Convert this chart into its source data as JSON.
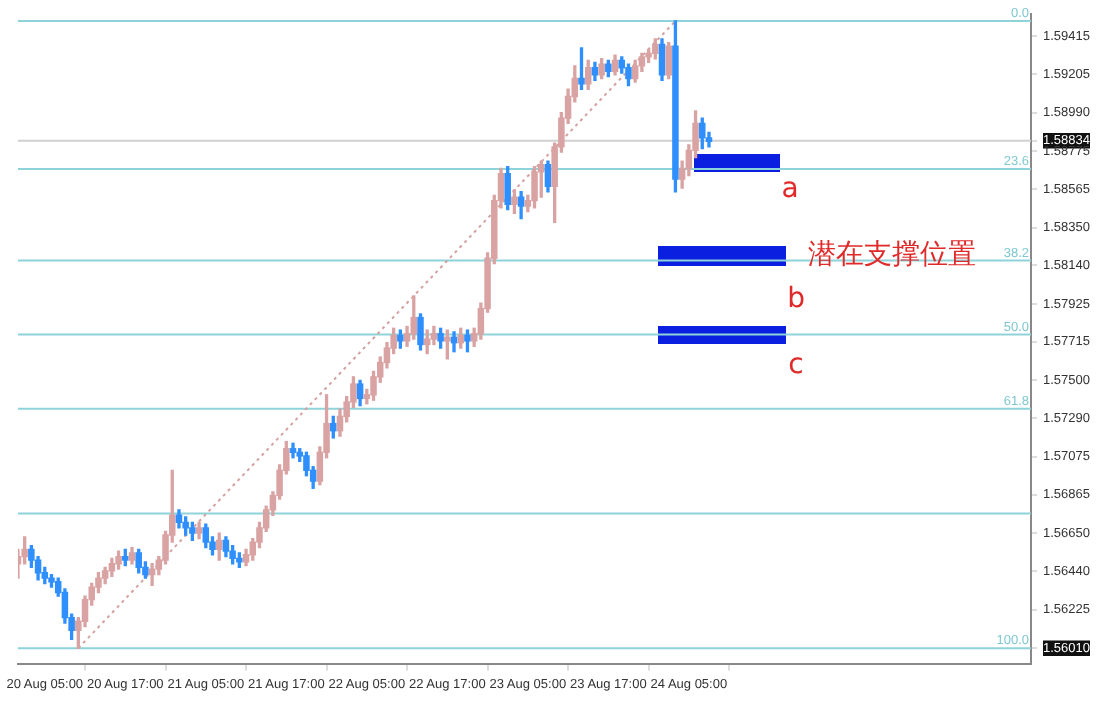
{
  "chart_data": {
    "type": "candlestick",
    "categories": [
      null,
      null,
      null,
      null,
      "20 Aug 05:00",
      null,
      null,
      null,
      null,
      null,
      null,
      null,
      null,
      null,
      null,
      null,
      "20 Aug 17:00",
      null,
      null,
      null,
      null,
      null,
      null,
      null,
      null,
      null,
      null,
      null,
      "21 Aug 05:00",
      null,
      null,
      null,
      null,
      null,
      null,
      null,
      null,
      null,
      null,
      null,
      "21 Aug 17:00",
      null,
      null,
      null,
      null,
      null,
      null,
      null,
      null,
      null,
      null,
      null,
      "22 Aug 05:00",
      null,
      null,
      null,
      null,
      null,
      null,
      null,
      null,
      null,
      null,
      null,
      "22 Aug 17:00",
      null,
      null,
      null,
      null,
      null,
      null,
      null,
      null,
      null,
      null,
      null,
      "23 Aug 05:00",
      null,
      null,
      null,
      null,
      null,
      null,
      null,
      null,
      null,
      null,
      null,
      "23 Aug 17:00",
      null,
      null,
      null,
      null,
      null,
      null,
      null,
      null,
      null,
      null,
      null,
      "24 Aug 05:00",
      null,
      null,
      null,
      null,
      null,
      null,
      null,
      null,
      null,
      null,
      null,
      null,
      null,
      null,
      null,
      null,
      null,
      null,
      null,
      null,
      null,
      null,
      null,
      null,
      null,
      null,
      null,
      null,
      null,
      null,
      null,
      null,
      null,
      null,
      null,
      null,
      null,
      null,
      null,
      null,
      null,
      null,
      null,
      null,
      null,
      null,
      null,
      null,
      null,
      null,
      null
    ],
    "ohlc": [
      [
        1.5648,
        1.5656,
        1.564,
        1.5652
      ],
      [
        1.5652,
        1.5663,
        1.5648,
        1.5656
      ],
      [
        1.5656,
        1.5658,
        1.5646,
        1.565
      ],
      [
        1.565,
        1.5652,
        1.5639,
        1.5643
      ],
      [
        1.5643,
        1.5646,
        1.5637,
        1.564
      ],
      [
        1.564,
        1.5642,
        1.5635,
        1.5638
      ],
      [
        1.5638,
        1.564,
        1.563,
        1.5632
      ],
      [
        1.5632,
        1.5634,
        1.5615,
        1.5618
      ],
      [
        1.5618,
        1.562,
        1.5606,
        1.5611
      ],
      [
        1.5611,
        1.5618,
        1.5601,
        1.5616
      ],
      [
        1.5616,
        1.563,
        1.5613,
        1.5628
      ],
      [
        1.5628,
        1.5637,
        1.5625,
        1.5635
      ],
      [
        1.5635,
        1.5643,
        1.5632,
        1.564
      ],
      [
        1.564,
        1.5646,
        1.5637,
        1.5644
      ],
      [
        1.5644,
        1.5651,
        1.5641,
        1.5648
      ],
      [
        1.5648,
        1.5655,
        1.5645,
        1.5652
      ],
      [
        1.5652,
        1.5656,
        1.5647,
        1.565
      ],
      [
        1.565,
        1.5657,
        1.5648,
        1.5654
      ],
      [
        1.5654,
        1.5656,
        1.5643,
        1.5646
      ],
      [
        1.5646,
        1.5649,
        1.564,
        1.5642
      ],
      [
        1.5642,
        1.5648,
        1.5636,
        1.5645
      ],
      [
        1.5645,
        1.5652,
        1.5642,
        1.565
      ],
      [
        1.565,
        1.5666,
        1.5648,
        1.5664
      ],
      [
        1.5664,
        1.57,
        1.566,
        1.5675
      ],
      [
        1.5675,
        1.5678,
        1.5668,
        1.5671
      ],
      [
        1.5671,
        1.5674,
        1.5664,
        1.5668
      ],
      [
        1.5668,
        1.5671,
        1.5661,
        1.5665
      ],
      [
        1.5665,
        1.5671,
        1.5662,
        1.5668
      ],
      [
        1.5668,
        1.567,
        1.5657,
        1.566
      ],
      [
        1.566,
        1.5663,
        1.5653,
        1.5656
      ],
      [
        1.5656,
        1.5665,
        1.565,
        1.5661
      ],
      [
        1.5661,
        1.5663,
        1.5652,
        1.5655
      ],
      [
        1.5655,
        1.5658,
        1.5648,
        1.5651
      ],
      [
        1.5651,
        1.5654,
        1.5646,
        1.5649
      ],
      [
        1.5649,
        1.5656,
        1.5647,
        1.5653
      ],
      [
        1.5653,
        1.5662,
        1.565,
        1.566
      ],
      [
        1.566,
        1.5671,
        1.5657,
        1.5668
      ],
      [
        1.5668,
        1.568,
        1.5666,
        1.5678
      ],
      [
        1.5678,
        1.5688,
        1.5675,
        1.5686
      ],
      [
        1.5686,
        1.5703,
        1.5684,
        1.57
      ],
      [
        1.57,
        1.5716,
        1.5698,
        1.5712
      ],
      [
        1.5712,
        1.5715,
        1.5707,
        1.571
      ],
      [
        1.571,
        1.5712,
        1.5705,
        1.5708
      ],
      [
        1.5708,
        1.571,
        1.5697,
        1.57
      ],
      [
        1.57,
        1.5702,
        1.569,
        1.5694
      ],
      [
        1.5694,
        1.5713,
        1.5692,
        1.571
      ],
      [
        1.571,
        1.5742,
        1.5707,
        1.5726
      ],
      [
        1.5726,
        1.573,
        1.5718,
        1.5722
      ],
      [
        1.5722,
        1.5734,
        1.5719,
        1.573
      ],
      [
        1.573,
        1.5741,
        1.5727,
        1.5738
      ],
      [
        1.5738,
        1.5752,
        1.5735,
        1.5748
      ],
      [
        1.5748,
        1.575,
        1.5736,
        1.574
      ],
      [
        1.574,
        1.5745,
        1.5737,
        1.5742
      ],
      [
        1.5742,
        1.5755,
        1.5739,
        1.5752
      ],
      [
        1.5752,
        1.5763,
        1.5749,
        1.576
      ],
      [
        1.576,
        1.5771,
        1.5757,
        1.5768
      ],
      [
        1.5768,
        1.5779,
        1.5765,
        1.5775
      ],
      [
        1.5775,
        1.5778,
        1.5768,
        1.5772
      ],
      [
        1.5772,
        1.578,
        1.5769,
        1.5776
      ],
      [
        1.5776,
        1.5797,
        1.5773,
        1.5785
      ],
      [
        1.5785,
        1.5787,
        1.5767,
        1.577
      ],
      [
        1.577,
        1.5778,
        1.5765,
        1.5773
      ],
      [
        1.5773,
        1.578,
        1.577,
        1.5776
      ],
      [
        1.5776,
        1.5779,
        1.5768,
        1.5772
      ],
      [
        1.5772,
        1.5778,
        1.5762,
        1.5774
      ],
      [
        1.5774,
        1.5777,
        1.5766,
        1.5771
      ],
      [
        1.5771,
        1.5779,
        1.5768,
        1.5775
      ],
      [
        1.5775,
        1.5778,
        1.5766,
        1.5772
      ],
      [
        1.5772,
        1.5779,
        1.5769,
        1.5776
      ],
      [
        1.5776,
        1.5793,
        1.5773,
        1.579
      ],
      [
        1.579,
        1.5821,
        1.5788,
        1.5818
      ],
      [
        1.5818,
        1.5853,
        1.5815,
        1.585
      ],
      [
        1.585,
        1.5868,
        1.5846,
        1.5865
      ],
      [
        1.5865,
        1.5869,
        1.5845,
        1.5848
      ],
      [
        1.5848,
        1.5856,
        1.5843,
        1.5852
      ],
      [
        1.5852,
        1.5855,
        1.584,
        1.5847
      ],
      [
        1.5847,
        1.5853,
        1.5844,
        1.585
      ],
      [
        1.585,
        1.5869,
        1.5846,
        1.5866
      ],
      [
        1.5866,
        1.5872,
        1.5852,
        1.587
      ],
      [
        1.587,
        1.5872,
        1.5855,
        1.5858
      ],
      [
        1.5858,
        1.5882,
        1.5838,
        1.588
      ],
      [
        1.588,
        1.5899,
        1.5877,
        1.5896
      ],
      [
        1.5896,
        1.5912,
        1.5893,
        1.5908
      ],
      [
        1.5908,
        1.5925,
        1.5905,
        1.5918
      ],
      [
        1.5918,
        1.5935,
        1.5912,
        1.5915
      ],
      [
        1.5915,
        1.5928,
        1.5912,
        1.5924
      ],
      [
        1.5924,
        1.5927,
        1.5917,
        1.592
      ],
      [
        1.592,
        1.5929,
        1.5918,
        1.5926
      ],
      [
        1.5926,
        1.5928,
        1.5919,
        1.5922
      ],
      [
        1.5922,
        1.5931,
        1.592,
        1.5928
      ],
      [
        1.5928,
        1.593,
        1.5921,
        1.5924
      ],
      [
        1.5924,
        1.5926,
        1.5914,
        1.5918
      ],
      [
        1.5918,
        1.5928,
        1.5916,
        1.5925
      ],
      [
        1.5925,
        1.5932,
        1.5922,
        1.593
      ],
      [
        1.593,
        1.5934,
        1.5927,
        1.5932
      ],
      [
        1.5932,
        1.594,
        1.5929,
        1.5937
      ],
      [
        1.5937,
        1.594,
        1.5917,
        1.592
      ],
      [
        1.592,
        1.5938,
        1.5918,
        1.5936
      ],
      [
        1.5936,
        1.595,
        1.5855,
        1.5862
      ],
      [
        1.5862,
        1.5872,
        1.5857,
        1.5868
      ],
      [
        1.5868,
        1.5881,
        1.5864,
        1.5878
      ],
      [
        1.5878,
        1.59,
        1.5874,
        1.5893
      ],
      [
        1.5893,
        1.5896,
        1.5879,
        1.5885
      ],
      [
        1.5885,
        1.5888,
        1.588,
        1.5883
      ],
      null,
      null,
      null,
      null,
      null,
      null,
      null,
      null,
      null,
      null,
      null,
      null,
      null,
      null,
      null,
      null,
      null,
      null,
      null,
      null,
      null,
      null,
      null,
      null,
      null,
      null,
      null,
      null,
      null,
      null,
      null,
      null,
      null,
      null,
      null,
      null,
      null,
      null,
      null,
      null,
      null,
      null,
      null,
      null,
      null,
      null,
      null,
      null
    ],
    "colors": [
      "#d9a3a3",
      "#d9a3a3",
      "#2f8fff",
      "#2f8fff",
      "#2f8fff",
      "#2f8fff",
      "#2f8fff",
      "#2f8fff",
      "#2f8fff",
      "#d9a3a3",
      "#d9a3a3",
      "#d9a3a3",
      "#d9a3a3",
      "#d9a3a3",
      "#d9a3a3",
      "#d9a3a3",
      "#2f8fff",
      "#d9a3a3",
      "#2f8fff",
      "#2f8fff",
      "#d9a3a3",
      "#d9a3a3",
      "#d9a3a3",
      "#d9a3a3",
      "#2f8fff",
      "#2f8fff",
      "#2f8fff",
      "#d9a3a3",
      "#2f8fff",
      "#2f8fff",
      "#d9a3a3",
      "#2f8fff",
      "#2f8fff",
      "#2f8fff",
      "#d9a3a3",
      "#d9a3a3",
      "#d9a3a3",
      "#d9a3a3",
      "#d9a3a3",
      "#d9a3a3",
      "#d9a3a3",
      "#2f8fff",
      "#2f8fff",
      "#2f8fff",
      "#2f8fff",
      "#d9a3a3",
      "#d9a3a3",
      "#2f8fff",
      "#d9a3a3",
      "#d9a3a3",
      "#d9a3a3",
      "#2f8fff",
      "#d9a3a3",
      "#d9a3a3",
      "#d9a3a3",
      "#d9a3a3",
      "#d9a3a3",
      "#2f8fff",
      "#d9a3a3",
      "#d9a3a3",
      "#2f8fff",
      "#d9a3a3",
      "#d9a3a3",
      "#2f8fff",
      "#d9a3a3",
      "#2f8fff",
      "#d9a3a3",
      "#2f8fff",
      "#d9a3a3",
      "#d9a3a3",
      "#d9a3a3",
      "#d9a3a3",
      "#d9a3a3",
      "#2f8fff",
      "#d9a3a3",
      "#2f8fff",
      "#d9a3a3",
      "#d9a3a3",
      "#d9a3a3",
      "#2f8fff",
      "#d9a3a3",
      "#d9a3a3",
      "#d9a3a3",
      "#d9a3a3",
      "#2f8fff",
      "#d9a3a3",
      "#2f8fff",
      "#d9a3a3",
      "#2f8fff",
      "#d9a3a3",
      "#2f8fff",
      "#2f8fff",
      "#d9a3a3",
      "#d9a3a3",
      "#d9a3a3",
      "#d9a3a3",
      "#2f8fff",
      "#d9a3a3",
      "#2f8fff",
      "#d9a3a3",
      "#d9a3a3",
      "#d9a3a3",
      "#2f8fff",
      "#2f8fff",
      null,
      null,
      null,
      null,
      null,
      null,
      null,
      null,
      null,
      null,
      null,
      null,
      null,
      null,
      null,
      null,
      null,
      null,
      null,
      null,
      null,
      null,
      null,
      null,
      null,
      null,
      null,
      null,
      null,
      null,
      null,
      null,
      null,
      null,
      null,
      null,
      null,
      null,
      null,
      null,
      null,
      null,
      null,
      null,
      null,
      null,
      null,
      null
    ],
    "series": [
      {
        "type": "line",
        "values": [
          null,
          null,
          null,
          null,
          null,
          null,
          null,
          null,
          null,
          1.5601,
          null,
          null,
          null,
          null,
          null,
          null,
          null,
          null,
          null,
          null,
          null,
          null,
          null,
          null,
          null,
          null,
          null,
          null,
          null,
          null,
          null,
          null,
          null,
          null,
          null,
          null,
          null,
          null,
          null,
          null,
          null,
          null,
          null,
          null,
          null,
          null,
          null,
          null,
          null,
          null,
          null,
          null,
          null,
          null,
          null,
          null,
          null,
          null,
          null,
          null,
          null,
          null,
          null,
          null,
          null,
          null,
          null,
          null,
          null,
          null,
          null,
          null,
          null,
          null,
          null,
          null,
          null,
          null,
          null,
          null,
          null,
          null,
          null,
          null,
          null,
          null,
          null,
          null,
          null,
          null,
          null,
          null,
          null,
          null,
          null,
          null,
          null,
          null,
          1.595,
          null,
          null,
          null,
          null,
          null,
          null,
          null,
          null,
          null,
          null,
          null,
          null,
          null,
          null,
          null,
          null,
          null,
          null,
          null,
          null,
          null,
          null,
          null,
          null,
          null,
          null,
          null,
          null,
          null,
          null,
          null,
          null,
          null,
          null,
          null,
          null,
          null,
          null,
          null,
          null,
          null,
          null,
          null,
          null,
          null,
          null,
          null,
          null,
          null,
          null,
          null,
          null,
          null
        ],
        "color": "#d4a0a0",
        "line_style": "dotted"
      }
    ],
    "ylim": [
      1.5592,
      1.5954
    ],
    "yticks": [
      1.59415,
      1.59205,
      {
        "value": 1.5899,
        "label": "1.58990"
      },
      1.58834,
      1.58775,
      1.58565,
      {
        "value": 1.5835,
        "label": "1.58350"
      },
      {
        "value": 1.5814,
        "label": "1.58140"
      },
      1.57925,
      1.57715,
      {
        "value": 1.575,
        "label": "1.57500"
      },
      {
        "value": 1.5729,
        "label": "1.57290"
      },
      1.57075,
      1.56865,
      {
        "value": 1.5665,
        "label": "1.56650"
      },
      {
        "value": 1.5644,
        "label": "1.56440"
      },
      1.56225,
      {
        "value": 1.5601,
        "label": "1.56010"
      }
    ],
    "ref_lines": [
      {
        "axis": "y",
        "value": 1.595,
        "color": "#8fd3da"
      },
      {
        "axis": "y",
        "value": 1.58676,
        "color": "#8fd3da"
      },
      {
        "axis": "y",
        "value": 1.58167,
        "color": "#8fd3da"
      },
      {
        "axis": "y",
        "value": 1.57755,
        "color": "#8fd3da"
      },
      {
        "axis": "y",
        "value": 1.57343,
        "color": "#8fd3da"
      },
      {
        "axis": "y",
        "value": 1.5676,
        "color": "#8fd3da"
      },
      {
        "axis": "y",
        "value": 1.5601,
        "color": "#8fd3da"
      },
      {
        "axis": "y",
        "value": 1.58834,
        "color": "#d0d0d0"
      }
    ],
    "annotations": [
      "a",
      "潜在支撑位置",
      "b",
      "c",
      {
        "text": "0.0",
        "y": 1.595
      },
      {
        "text": "23.6",
        "y": 1.58676
      },
      {
        "text": "38.2",
        "y": 1.58167
      },
      {
        "text": "50.0",
        "y": 1.57755
      },
      {
        "text": "61.8",
        "y": 1.57343
      },
      {
        "text": "100.0",
        "y": 1.5601
      }
    ],
    "legend": false,
    "grid": false
  }
}
